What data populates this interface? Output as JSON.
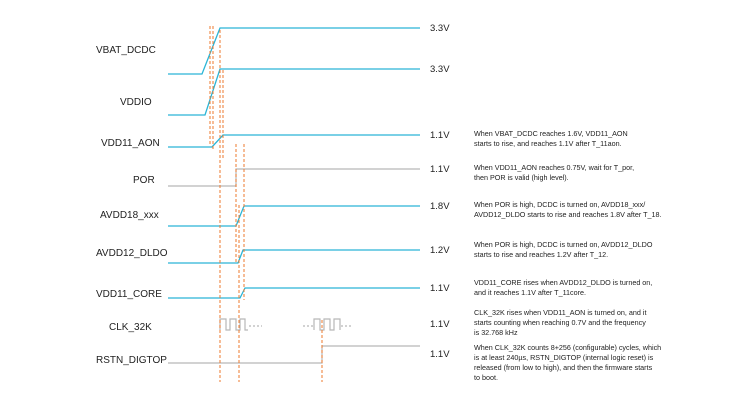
{
  "signals": [
    {
      "id": "vbat_dcdc",
      "label": "VBAT_DCDC",
      "voltage": "3.3V"
    },
    {
      "id": "vddio",
      "label": "VDDIO",
      "voltage": "3.3V"
    },
    {
      "id": "vdd11_aon",
      "label": "VDD11_AON",
      "voltage": "1.1V"
    },
    {
      "id": "por",
      "label": "POR",
      "voltage": "1.1V"
    },
    {
      "id": "avdd18",
      "label": "AVDD18_xxx",
      "voltage": "1.8V"
    },
    {
      "id": "avdd12",
      "label": "AVDD12_DLDO",
      "voltage": "1.2V"
    },
    {
      "id": "vdd11_core",
      "label": "VDD11_CORE",
      "voltage": "1.1V"
    },
    {
      "id": "clk_32k",
      "label": "CLK_32K",
      "voltage": "1.1V"
    },
    {
      "id": "rstn_digtop",
      "label": "RSTN_DIGTOP",
      "voltage": "1.1V"
    }
  ],
  "notes": [
    {
      "lines": [
        "When VBAT_DCDC reaches 1.6V, VDD11_AON",
        "starts to rise, and reaches 1.1V after T_11aon."
      ]
    },
    {
      "lines": [
        "When VDD11_AON reaches 0.75V, wait for T_por,",
        "then POR is valid (high level)."
      ]
    },
    {
      "lines": [
        "When POR is high, DCDC is turned on, AVDD18_xxx/",
        "AVDD12_DLDO starts to rise and reaches 1.8V after T_18."
      ]
    },
    {
      "lines": [
        "When POR is high, DCDC is turned on,  AVDD12_DLDO",
        "starts to rise and reaches 1.2V after T_12."
      ]
    },
    {
      "lines": [
        "VDD11_CORE rises when AVDD12_DLDO is turned on,",
        "and it reaches 1.1V after T_11core."
      ]
    },
    {
      "lines": [
        "CLK_32K rises when VDD11_AON is turned on, and it",
        "starts counting when reaching 0.7V and the frequency",
        "is 32.768 kHz"
      ]
    },
    {
      "lines": [
        "When CLK_32K counts 8+256 (configurable) cycles, which",
        "is at least 240µs, RSTN_DIGTOP (internal logic reset) is",
        "released (from low to high), and then the firmware starts",
        "to boot."
      ]
    }
  ],
  "colors": {
    "signal": "#2bb5d6",
    "signal_inactive": "#b8b8b8",
    "marker": "#ee7a2e",
    "text": "#222222"
  }
}
